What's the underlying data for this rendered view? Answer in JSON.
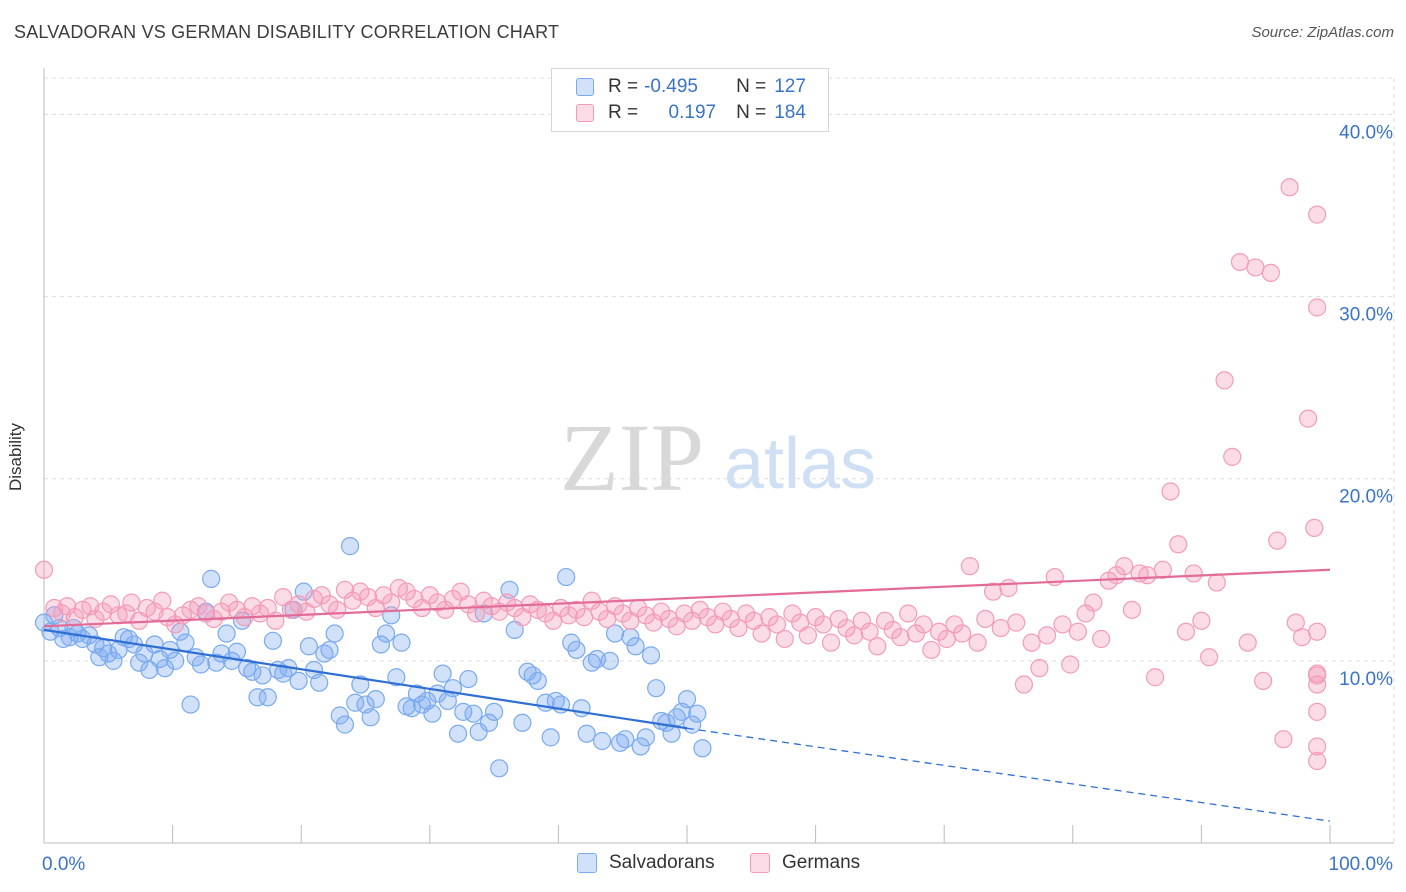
{
  "title": "SALVADORAN VS GERMAN DISABILITY CORRELATION CHART",
  "source": "Source: ZipAtlas.com",
  "watermark": {
    "zip": "ZIP",
    "atlas": "atlas"
  },
  "legend": {
    "rows": [
      {
        "r_label": "R =",
        "r_value": "-0.495",
        "n_label": "N =",
        "n_value": "127",
        "color": "#7aaaf0"
      },
      {
        "r_label": "R =",
        "r_value": " 0.197",
        "n_label": "N =",
        "n_value": "184",
        "color": "#f49cb7"
      }
    ]
  },
  "bottom_legend": [
    {
      "label": "Salvadorans",
      "color": "#7aaaf0"
    },
    {
      "label": "Germans",
      "color": "#f49cb7"
    }
  ],
  "chart_data": {
    "type": "scatter",
    "title": "SALVADORAN VS GERMAN DISABILITY CORRELATION CHART",
    "xlabel": "",
    "ylabel": "Disability",
    "xlim": [
      0,
      100
    ],
    "ylim": [
      0,
      42
    ],
    "x_tick_labels": [
      "0.0%",
      "100.0%"
    ],
    "y_ticks": [
      10,
      20,
      30,
      40
    ],
    "y_tick_labels": [
      "10.0%",
      "20.0%",
      "30.0%",
      "40.0%"
    ],
    "grid": true,
    "legend_position": "top-center",
    "series": [
      {
        "name": "Salvadorans",
        "color": "#7aaaf0",
        "line_color": "#2f6fd4",
        "trend": {
          "x0": 0,
          "y0": 11.7,
          "x1": 50,
          "y1": 6.3,
          "dashed_to_x": 100,
          "dashed_to_y": 1.2
        },
        "points": [
          [
            0,
            12.1
          ],
          [
            0.5,
            11.6
          ],
          [
            0.8,
            12.5
          ],
          [
            1.2,
            11.8
          ],
          [
            1.5,
            11.2
          ],
          [
            2,
            11.3
          ],
          [
            2.3,
            11.8
          ],
          [
            2.6,
            11.5
          ],
          [
            3,
            11.2
          ],
          [
            3.5,
            11.4
          ],
          [
            4,
            10.9
          ],
          [
            4.3,
            10.2
          ],
          [
            4.6,
            10.7
          ],
          [
            5,
            10.4
          ],
          [
            5.4,
            10.0
          ],
          [
            5.8,
            10.6
          ],
          [
            6.2,
            11.3
          ],
          [
            6.6,
            11.2
          ],
          [
            7,
            10.9
          ],
          [
            7.4,
            9.9
          ],
          [
            7.8,
            10.4
          ],
          [
            8.2,
            9.5
          ],
          [
            8.6,
            10.9
          ],
          [
            9,
            10.1
          ],
          [
            9.4,
            9.6
          ],
          [
            9.8,
            10.6
          ],
          [
            10.2,
            10.0
          ],
          [
            10.6,
            11.6
          ],
          [
            11,
            11.0
          ],
          [
            11.4,
            7.6
          ],
          [
            11.8,
            10.2
          ],
          [
            12.2,
            9.8
          ],
          [
            12.6,
            12.7
          ],
          [
            13,
            14.5
          ],
          [
            13.4,
            9.9
          ],
          [
            13.8,
            10.4
          ],
          [
            14.2,
            11.5
          ],
          [
            14.6,
            10.0
          ],
          [
            15,
            10.5
          ],
          [
            15.4,
            12.2
          ],
          [
            15.8,
            9.6
          ],
          [
            16.2,
            9.4
          ],
          [
            16.6,
            8.0
          ],
          [
            17,
            9.2
          ],
          [
            17.4,
            8.0
          ],
          [
            17.8,
            11.1
          ],
          [
            18.2,
            9.5
          ],
          [
            18.6,
            9.3
          ],
          [
            19,
            9.6
          ],
          [
            19.4,
            12.8
          ],
          [
            19.8,
            8.9
          ],
          [
            20.2,
            13.8
          ],
          [
            20.6,
            10.8
          ],
          [
            21,
            9.5
          ],
          [
            21.4,
            8.8
          ],
          [
            21.8,
            10.4
          ],
          [
            22.2,
            10.6
          ],
          [
            22.6,
            11.5
          ],
          [
            23,
            7.0
          ],
          [
            23.4,
            6.5
          ],
          [
            23.8,
            16.3
          ],
          [
            24.2,
            7.7
          ],
          [
            24.6,
            8.7
          ],
          [
            25,
            7.6
          ],
          [
            25.4,
            6.9
          ],
          [
            25.8,
            7.9
          ],
          [
            26.2,
            10.9
          ],
          [
            26.6,
            11.5
          ],
          [
            27,
            12.5
          ],
          [
            27.4,
            9.1
          ],
          [
            27.8,
            11.0
          ],
          [
            28.2,
            7.5
          ],
          [
            28.6,
            7.4
          ],
          [
            29,
            8.2
          ],
          [
            29.4,
            7.6
          ],
          [
            29.8,
            7.8
          ],
          [
            30.2,
            7.1
          ],
          [
            30.6,
            8.2
          ],
          [
            31,
            9.3
          ],
          [
            31.4,
            7.8
          ],
          [
            31.8,
            8.5
          ],
          [
            32.2,
            6.0
          ],
          [
            32.6,
            7.2
          ],
          [
            33,
            9.0
          ],
          [
            33.4,
            7.1
          ],
          [
            33.8,
            6.1
          ],
          [
            34.2,
            12.6
          ],
          [
            34.6,
            6.6
          ],
          [
            35,
            7.2
          ],
          [
            35.4,
            4.1
          ],
          [
            36.2,
            13.9
          ],
          [
            36.6,
            11.7
          ],
          [
            37.2,
            6.6
          ],
          [
            37.6,
            9.4
          ],
          [
            38,
            9.2
          ],
          [
            38.4,
            8.9
          ],
          [
            39,
            7.7
          ],
          [
            39.4,
            5.8
          ],
          [
            39.8,
            7.8
          ],
          [
            40.2,
            7.6
          ],
          [
            40.6,
            14.6
          ],
          [
            41,
            11.0
          ],
          [
            41.4,
            10.6
          ],
          [
            41.8,
            7.4
          ],
          [
            42.2,
            6.0
          ],
          [
            42.6,
            9.9
          ],
          [
            43,
            10.1
          ],
          [
            43.4,
            5.6
          ],
          [
            44,
            10.0
          ],
          [
            44.4,
            11.5
          ],
          [
            44.8,
            5.5
          ],
          [
            45.2,
            5.7
          ],
          [
            45.6,
            11.3
          ],
          [
            46,
            10.8
          ],
          [
            46.4,
            5.3
          ],
          [
            46.8,
            5.8
          ],
          [
            47.2,
            10.3
          ],
          [
            47.6,
            8.5
          ],
          [
            48,
            6.7
          ],
          [
            48.4,
            6.6
          ],
          [
            48.8,
            6.0
          ],
          [
            49.2,
            6.9
          ],
          [
            49.6,
            7.2
          ],
          [
            50,
            7.9
          ],
          [
            50.4,
            6.5
          ],
          [
            50.8,
            7.1
          ],
          [
            51.2,
            5.2
          ]
        ]
      },
      {
        "name": "Germans",
        "color": "#f49cb7",
        "line_color": "#e36b98",
        "trend": {
          "x0": 0,
          "y0": 11.9,
          "x1": 100,
          "y1": 15.0
        },
        "points": [
          [
            0,
            15.0
          ],
          [
            0.8,
            12.9
          ],
          [
            1.4,
            12.6
          ],
          [
            1.8,
            13.0
          ],
          [
            2.4,
            12.4
          ],
          [
            3,
            12.8
          ],
          [
            3.6,
            13.0
          ],
          [
            4,
            12.3
          ],
          [
            4.6,
            12.7
          ],
          [
            5.2,
            13.1
          ],
          [
            5.8,
            12.5
          ],
          [
            6.4,
            12.6
          ],
          [
            6.8,
            13.2
          ],
          [
            7.4,
            12.2
          ],
          [
            8,
            12.9
          ],
          [
            8.6,
            12.7
          ],
          [
            9.2,
            13.3
          ],
          [
            9.6,
            12.4
          ],
          [
            10.2,
            12.0
          ],
          [
            10.8,
            12.5
          ],
          [
            11.4,
            12.8
          ],
          [
            12,
            13.0
          ],
          [
            12.6,
            12.6
          ],
          [
            13.2,
            12.3
          ],
          [
            13.8,
            12.7
          ],
          [
            14.4,
            13.2
          ],
          [
            15,
            12.8
          ],
          [
            15.6,
            12.4
          ],
          [
            16.2,
            13.0
          ],
          [
            16.8,
            12.6
          ],
          [
            17.4,
            12.9
          ],
          [
            18,
            12.2
          ],
          [
            18.6,
            13.5
          ],
          [
            19.2,
            12.8
          ],
          [
            19.8,
            13.1
          ],
          [
            20.4,
            12.7
          ],
          [
            21,
            13.4
          ],
          [
            21.6,
            13.6
          ],
          [
            22.2,
            13.1
          ],
          [
            22.8,
            12.8
          ],
          [
            23.4,
            13.9
          ],
          [
            24,
            13.3
          ],
          [
            24.6,
            13.8
          ],
          [
            25.2,
            13.5
          ],
          [
            25.8,
            12.9
          ],
          [
            26.4,
            13.6
          ],
          [
            27,
            13.2
          ],
          [
            27.6,
            14.0
          ],
          [
            28.2,
            13.8
          ],
          [
            28.8,
            13.4
          ],
          [
            29.4,
            12.9
          ],
          [
            30,
            13.6
          ],
          [
            30.6,
            13.2
          ],
          [
            31.2,
            12.8
          ],
          [
            31.8,
            13.4
          ],
          [
            32.4,
            13.8
          ],
          [
            33,
            13.1
          ],
          [
            33.6,
            12.6
          ],
          [
            34.2,
            13.3
          ],
          [
            34.8,
            13.0
          ],
          [
            35.4,
            12.7
          ],
          [
            36,
            13.2
          ],
          [
            36.6,
            12.9
          ],
          [
            37.2,
            12.4
          ],
          [
            37.8,
            13.1
          ],
          [
            38.4,
            12.8
          ],
          [
            39,
            12.6
          ],
          [
            39.6,
            12.2
          ],
          [
            40.2,
            12.9
          ],
          [
            40.8,
            12.5
          ],
          [
            41.4,
            12.8
          ],
          [
            42,
            12.4
          ],
          [
            42.6,
            13.3
          ],
          [
            43.2,
            12.7
          ],
          [
            43.8,
            12.3
          ],
          [
            44.4,
            13.0
          ],
          [
            45,
            12.6
          ],
          [
            45.6,
            12.2
          ],
          [
            46.2,
            12.9
          ],
          [
            46.8,
            12.5
          ],
          [
            47.4,
            12.1
          ],
          [
            48,
            12.7
          ],
          [
            48.6,
            12.3
          ],
          [
            49.2,
            11.9
          ],
          [
            49.8,
            12.6
          ],
          [
            50.4,
            12.2
          ],
          [
            51,
            12.8
          ],
          [
            51.6,
            12.4
          ],
          [
            52.2,
            12.0
          ],
          [
            52.8,
            12.7
          ],
          [
            53.4,
            12.3
          ],
          [
            54,
            11.8
          ],
          [
            54.6,
            12.6
          ],
          [
            55.2,
            12.2
          ],
          [
            55.8,
            11.5
          ],
          [
            56.4,
            12.4
          ],
          [
            57,
            12.0
          ],
          [
            57.6,
            11.2
          ],
          [
            58.2,
            12.6
          ],
          [
            58.8,
            12.1
          ],
          [
            59.4,
            11.4
          ],
          [
            60,
            12.4
          ],
          [
            60.6,
            12.0
          ],
          [
            61.2,
            11.0
          ],
          [
            61.8,
            12.3
          ],
          [
            62.4,
            11.8
          ],
          [
            63,
            11.4
          ],
          [
            63.6,
            12.2
          ],
          [
            64.2,
            11.6
          ],
          [
            64.8,
            10.8
          ],
          [
            65.4,
            12.2
          ],
          [
            66,
            11.7
          ],
          [
            66.6,
            11.3
          ],
          [
            67.2,
            12.6
          ],
          [
            67.8,
            11.5
          ],
          [
            68.4,
            12.0
          ],
          [
            69,
            10.6
          ],
          [
            69.6,
            11.6
          ],
          [
            70.2,
            11.2
          ],
          [
            70.8,
            12.0
          ],
          [
            71.4,
            11.5
          ],
          [
            72,
            15.2
          ],
          [
            72.6,
            11.0
          ],
          [
            73.2,
            12.3
          ],
          [
            73.8,
            13.8
          ],
          [
            74.4,
            11.8
          ],
          [
            75,
            14.0
          ],
          [
            75.6,
            12.1
          ],
          [
            76.2,
            8.7
          ],
          [
            76.8,
            11.0
          ],
          [
            77.4,
            9.6
          ],
          [
            78,
            11.4
          ],
          [
            78.6,
            14.6
          ],
          [
            79.2,
            12.0
          ],
          [
            79.8,
            9.8
          ],
          [
            80.4,
            11.6
          ],
          [
            81,
            12.6
          ],
          [
            81.6,
            13.2
          ],
          [
            82.2,
            11.2
          ],
          [
            82.8,
            14.4
          ],
          [
            83.4,
            14.7
          ],
          [
            84,
            15.2
          ],
          [
            84.6,
            12.8
          ],
          [
            85.2,
            14.8
          ],
          [
            85.8,
            14.7
          ],
          [
            86.4,
            9.1
          ],
          [
            87,
            15.0
          ],
          [
            87.6,
            19.3
          ],
          [
            88.2,
            16.4
          ],
          [
            88.8,
            11.6
          ],
          [
            89.4,
            14.8
          ],
          [
            90,
            12.2
          ],
          [
            90.6,
            10.2
          ],
          [
            91.2,
            14.3
          ],
          [
            91.8,
            25.4
          ],
          [
            92.4,
            21.2
          ],
          [
            93,
            31.9
          ],
          [
            93.6,
            11.0
          ],
          [
            94.2,
            31.6
          ],
          [
            94.8,
            8.9
          ],
          [
            95.4,
            31.3
          ],
          [
            96,
            16.6
          ],
          [
            96.6,
            5.7
          ],
          [
            97.2,
            36.0
          ],
          [
            97.8,
            12.1
          ],
          [
            98.4,
            11.3
          ],
          [
            99,
            23.3
          ],
          [
            99.6,
            17.3
          ],
          [
            100,
            9.2
          ],
          [
            100.5,
            9.3
          ],
          [
            101,
            8.7
          ],
          [
            101.6,
            7.2
          ],
          [
            102.2,
            5.3
          ],
          [
            102.8,
            4.5
          ],
          [
            103.4,
            11.6
          ],
          [
            104,
            29.4
          ],
          [
            104.6,
            34.5
          ]
        ]
      }
    ]
  }
}
